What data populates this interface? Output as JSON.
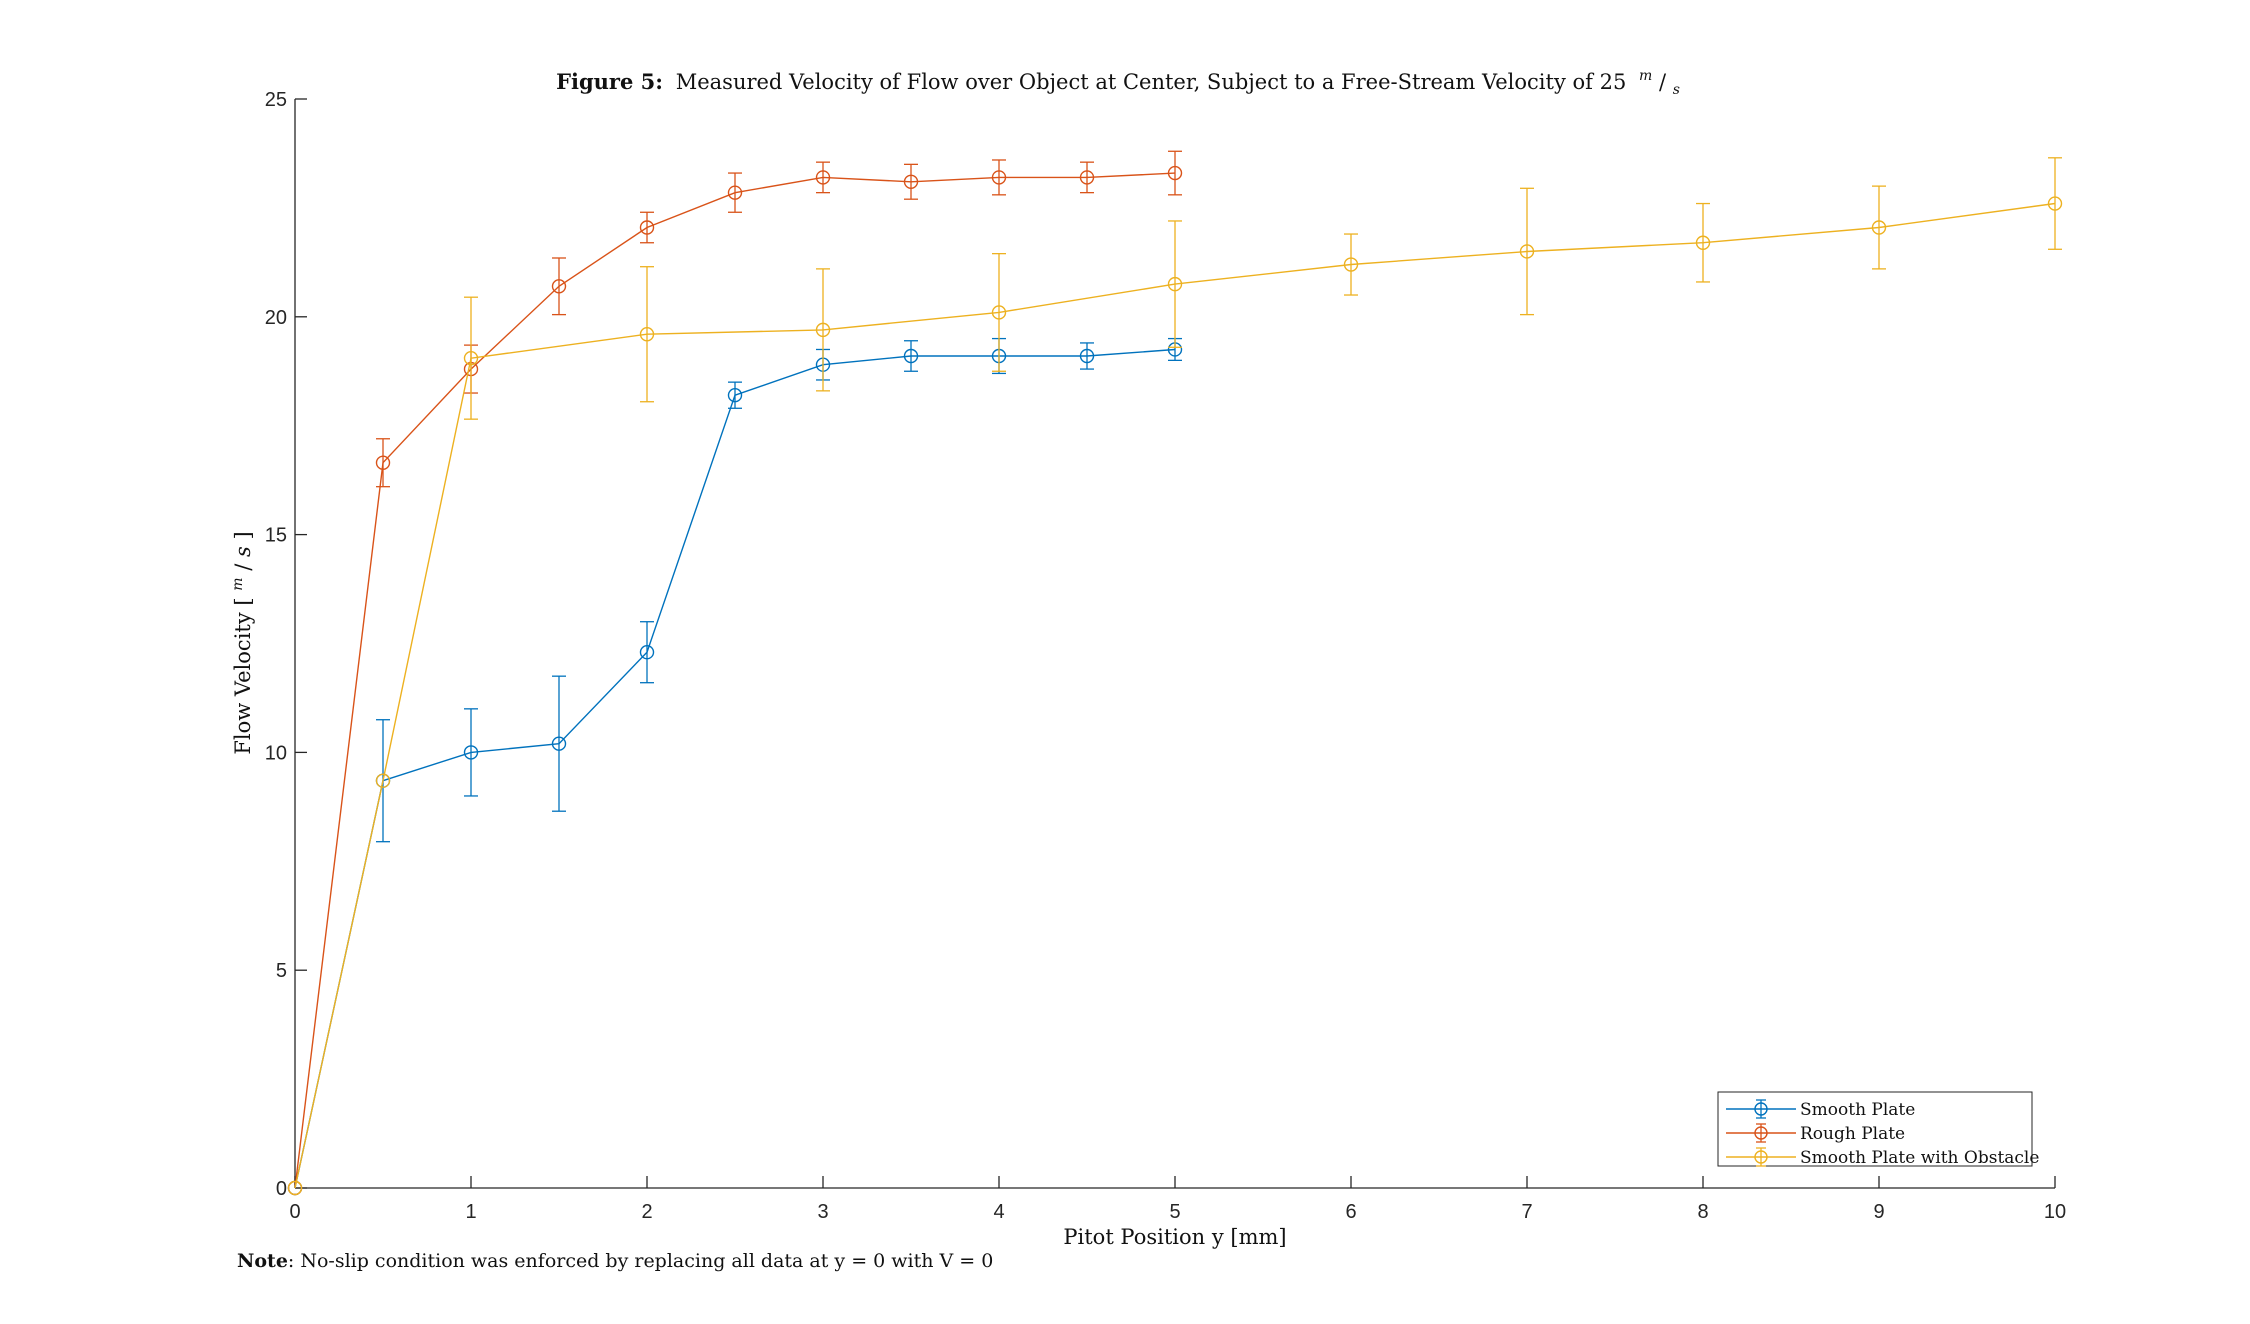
{
  "chart_data": {
    "type": "line",
    "title_bold": "Figure 5:",
    "title_text": "Measured Velocity of Flow over Object at Center, Subject to a Free-Stream Velocity of 25",
    "title_unit_num": "m",
    "title_unit_den": "s",
    "xlabel": "Pitot Position y [mm]",
    "ylabel_prefix": "Flow Velocity [",
    "ylabel_unit_num": "m",
    "ylabel_unit_den": "s",
    "ylabel_suffix": "]",
    "note_bold": "Note",
    "note_text": ": No-slip condition was enforced by replacing all data at y = 0 with V = 0",
    "xlim": [
      0,
      10
    ],
    "ylim": [
      0,
      25
    ],
    "xticks": [
      0,
      1,
      2,
      3,
      4,
      5,
      6,
      7,
      8,
      9,
      10
    ],
    "yticks": [
      0,
      5,
      10,
      15,
      20,
      25
    ],
    "grid": false,
    "legend_position": "bottom-right",
    "series": [
      {
        "name": "Smooth Plate",
        "color": "#0072BD",
        "x": [
          0,
          0.5,
          1,
          1.5,
          2,
          2.5,
          3,
          3.5,
          4,
          4.5,
          5
        ],
        "y": [
          0,
          9.35,
          10.0,
          10.2,
          12.3,
          18.2,
          18.9,
          19.1,
          19.1,
          19.1,
          19.25
        ],
        "err": [
          0,
          1.4,
          1.0,
          1.55,
          0.7,
          0.3,
          0.35,
          0.35,
          0.4,
          0.3,
          0.25
        ]
      },
      {
        "name": "Rough Plate",
        "color": "#D95319",
        "x": [
          0,
          0.5,
          1,
          1.5,
          2,
          2.5,
          3,
          3.5,
          4,
          4.5,
          5
        ],
        "y": [
          0,
          16.65,
          18.8,
          20.7,
          22.05,
          22.85,
          23.2,
          23.1,
          23.2,
          23.2,
          23.3
        ],
        "err": [
          0,
          0.55,
          0.55,
          0.65,
          0.35,
          0.45,
          0.35,
          0.4,
          0.4,
          0.35,
          0.5
        ]
      },
      {
        "name": "Smooth Plate with Obstacle",
        "color": "#EDB120",
        "x": [
          0,
          0.5,
          1,
          2,
          3,
          4,
          5,
          6,
          7,
          8,
          9,
          10
        ],
        "y": [
          0,
          9.35,
          19.05,
          19.6,
          19.7,
          20.1,
          20.75,
          21.2,
          21.5,
          21.7,
          22.05,
          22.6
        ],
        "err": [
          0,
          0,
          1.4,
          1.55,
          1.4,
          1.35,
          1.45,
          0.7,
          1.45,
          0.9,
          0.95,
          1.05
        ]
      }
    ]
  }
}
